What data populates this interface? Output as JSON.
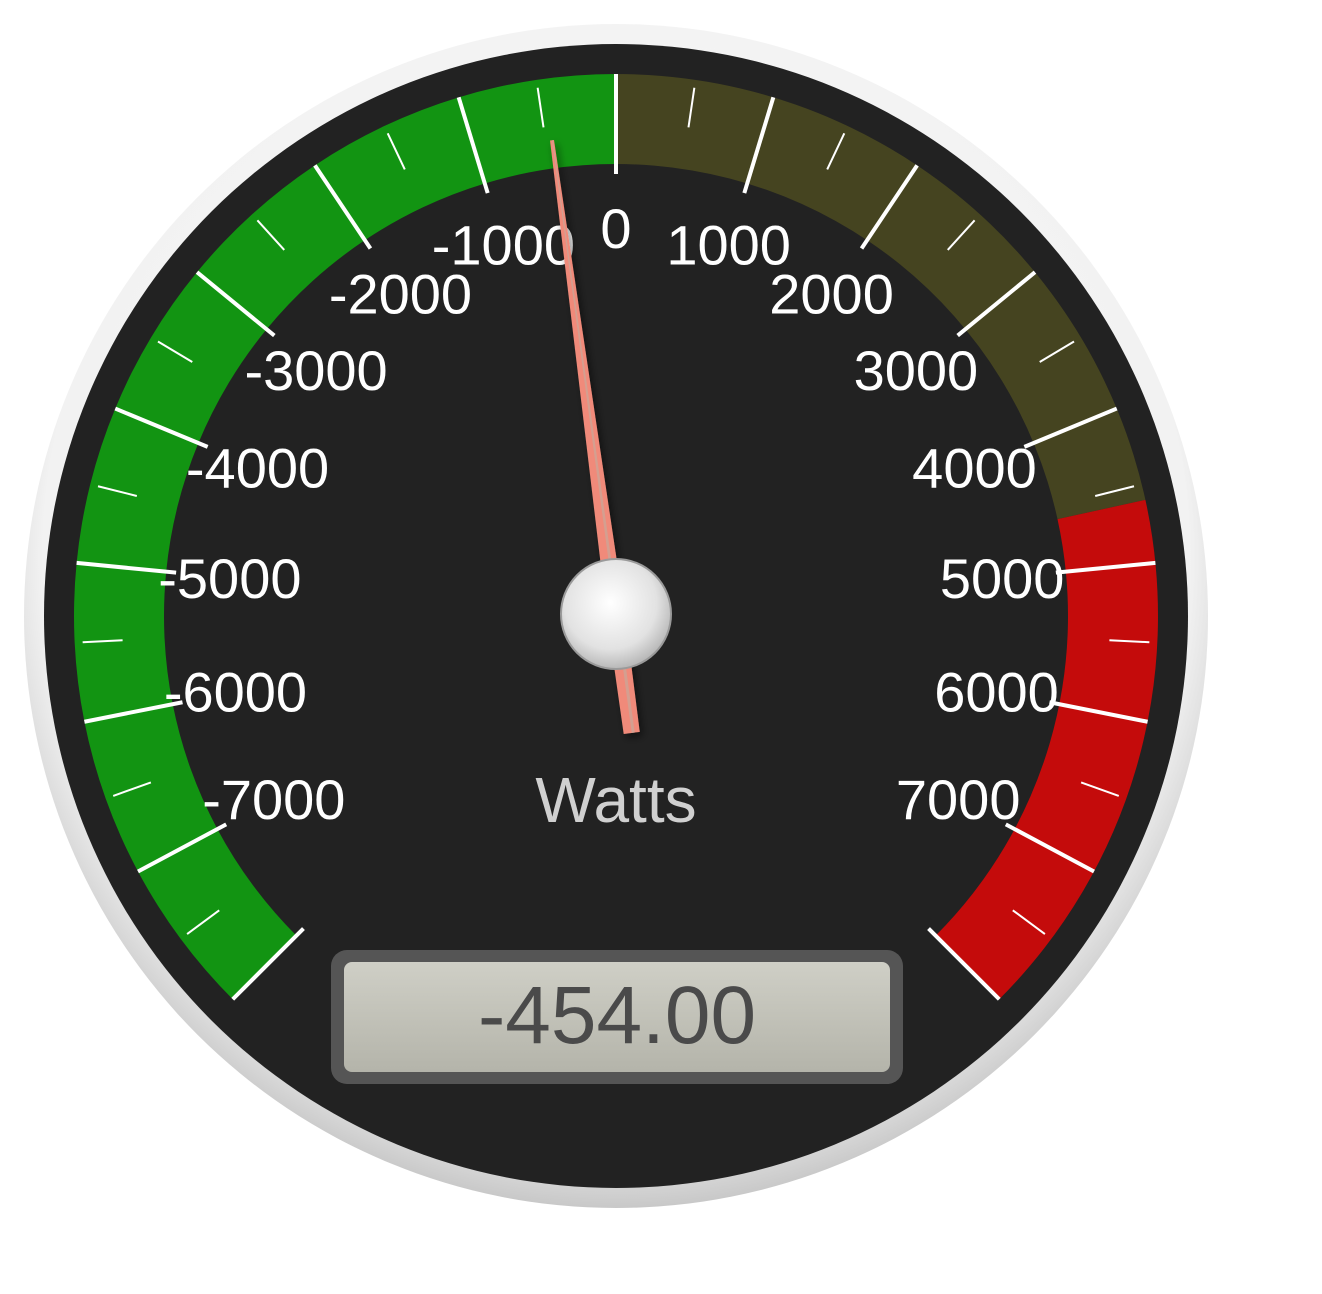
{
  "gauge": {
    "units": "Watts",
    "value": -454,
    "readout": "-454.00",
    "min": -8000,
    "max": 8000,
    "major_ticks": [
      "-7000",
      "-6000",
      "-5000",
      "-4000",
      "-3000",
      "-2000",
      "-1000",
      "0",
      "1000",
      "2000",
      "3000",
      "4000",
      "5000",
      "6000",
      "7000"
    ],
    "major_tick_values": [
      -7000,
      -6000,
      -5000,
      -4000,
      -3000,
      -2000,
      -1000,
      0,
      1000,
      2000,
      3000,
      4000,
      5000,
      6000,
      7000
    ],
    "highlights": [
      {
        "from": -8000,
        "to": 0,
        "color": "#129412"
      },
      {
        "from": 0,
        "to": 4600,
        "color": "#454420"
      },
      {
        "from": 4600,
        "to": 8000,
        "color": "#c40b0b"
      }
    ],
    "colors": {
      "face": "#222222",
      "bezel": "#e8e8e8",
      "needle": "#f08a7a",
      "readout_bg": "#bcbcb2",
      "ticks": "#ffffff"
    }
  }
}
